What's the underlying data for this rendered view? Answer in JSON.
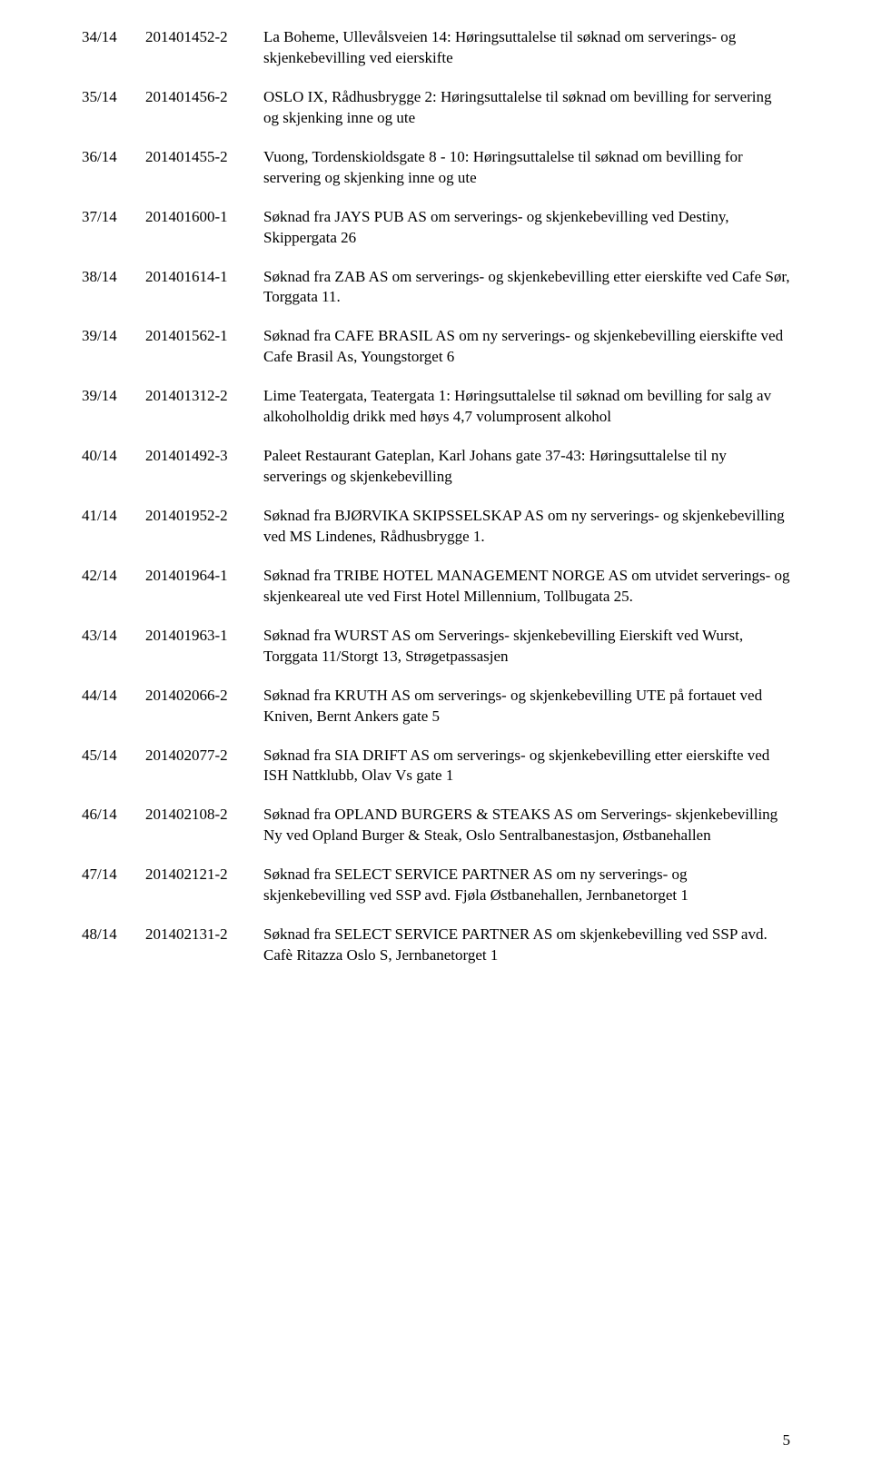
{
  "font": {
    "family": "Times New Roman",
    "size_pt": 12,
    "color": "#000000"
  },
  "background_color": "#ffffff",
  "page_number": "5",
  "rows": [
    {
      "num": "34/14",
      "ref": "201401452-2",
      "desc": "La Boheme, Ullevålsveien 14: Høringsuttalelse til søknad om serverings- og skjenkebevilling ved eierskifte"
    },
    {
      "num": "35/14",
      "ref": "201401456-2",
      "desc": "OSLO IX, Rådhusbrygge 2: Høringsuttalelse til søknad om bevilling for servering og skjenking inne og ute"
    },
    {
      "num": "36/14",
      "ref": "201401455-2",
      "desc": "Vuong, Tordenskioldsgate 8 - 10: Høringsuttalelse til søknad om bevilling for servering og skjenking inne og ute"
    },
    {
      "num": "37/14",
      "ref": "201401600-1",
      "desc": "Søknad fra JAYS PUB AS om serverings- og skjenkebevilling ved Destiny, Skippergata 26"
    },
    {
      "num": "38/14",
      "ref": "201401614-1",
      "desc": "Søknad fra ZAB AS om serverings- og skjenkebevilling etter eierskifte ved Cafe Sør, Torggata  11."
    },
    {
      "num": "39/14",
      "ref": "201401562-1",
      "desc": "Søknad fra CAFE BRASIL AS om ny serverings- og skjenkebevilling eierskifte ved Cafe Brasil As, Youngstorget 6"
    },
    {
      "num": "39/14",
      "ref": "201401312-2",
      "desc": "Lime Teatergata, Teatergata 1: Høringsuttalelse til søknad om bevilling for salg av alkoholholdig drikk med høys 4,7 volumprosent alkohol"
    },
    {
      "num": "40/14",
      "ref": "201401492-3",
      "desc": "Paleet Restaurant Gateplan, Karl Johans gate 37-43: Høringsuttalelse til ny serverings og skjenkebevilling"
    },
    {
      "num": "41/14",
      "ref": "201401952-2",
      "desc": "Søknad fra BJØRVIKA SKIPSSELSKAP AS om ny serverings- og skjenkebevilling ved MS Lindenes, Rådhusbrygge 1."
    },
    {
      "num": "42/14",
      "ref": "201401964-1",
      "desc": "Søknad fra TRIBE HOTEL MANAGEMENT NORGE AS om utvidet serverings- og skjenkeareal ute ved First Hotel Millennium, Tollbugata 25."
    },
    {
      "num": "43/14",
      "ref": "201401963-1",
      "desc": "Søknad fra WURST AS om Serverings- skjenkebevilling Eierskift ved Wurst, Torggata  11/Storgt 13, Strøgetpassasjen"
    },
    {
      "num": "44/14",
      "ref": "201402066-2",
      "desc": "Søknad fra KRUTH AS om serverings- og skjenkebevilling UTE på fortauet ved Kniven, Bernt Ankers gate 5"
    },
    {
      "num": "45/14",
      "ref": "201402077-2",
      "desc": "Søknad fra SIA DRIFT AS om serverings- og skjenkebevilling etter eierskifte ved ISH Nattklubb, Olav Vs gate 1"
    },
    {
      "num": "46/14",
      "ref": "201402108-2",
      "desc": "Søknad fra OPLAND BURGERS & STEAKS AS om Serverings- skjenkebevilling Ny ved Opland Burger & Steak, Oslo Sentralbanestasjon, Østbanehallen"
    },
    {
      "num": "47/14",
      "ref": "201402121-2",
      "desc": "Søknad fra SELECT SERVICE PARTNER AS om ny serverings- og skjenkebevilling ved SSP avd. Fjøla Østbanehallen, Jernbanetorget 1"
    },
    {
      "num": "48/14",
      "ref": "201402131-2",
      "desc": "Søknad fra SELECT SERVICE PARTNER AS om skjenkebevilling ved SSP avd. Cafè Ritazza Oslo S, Jernbanetorget 1"
    }
  ]
}
